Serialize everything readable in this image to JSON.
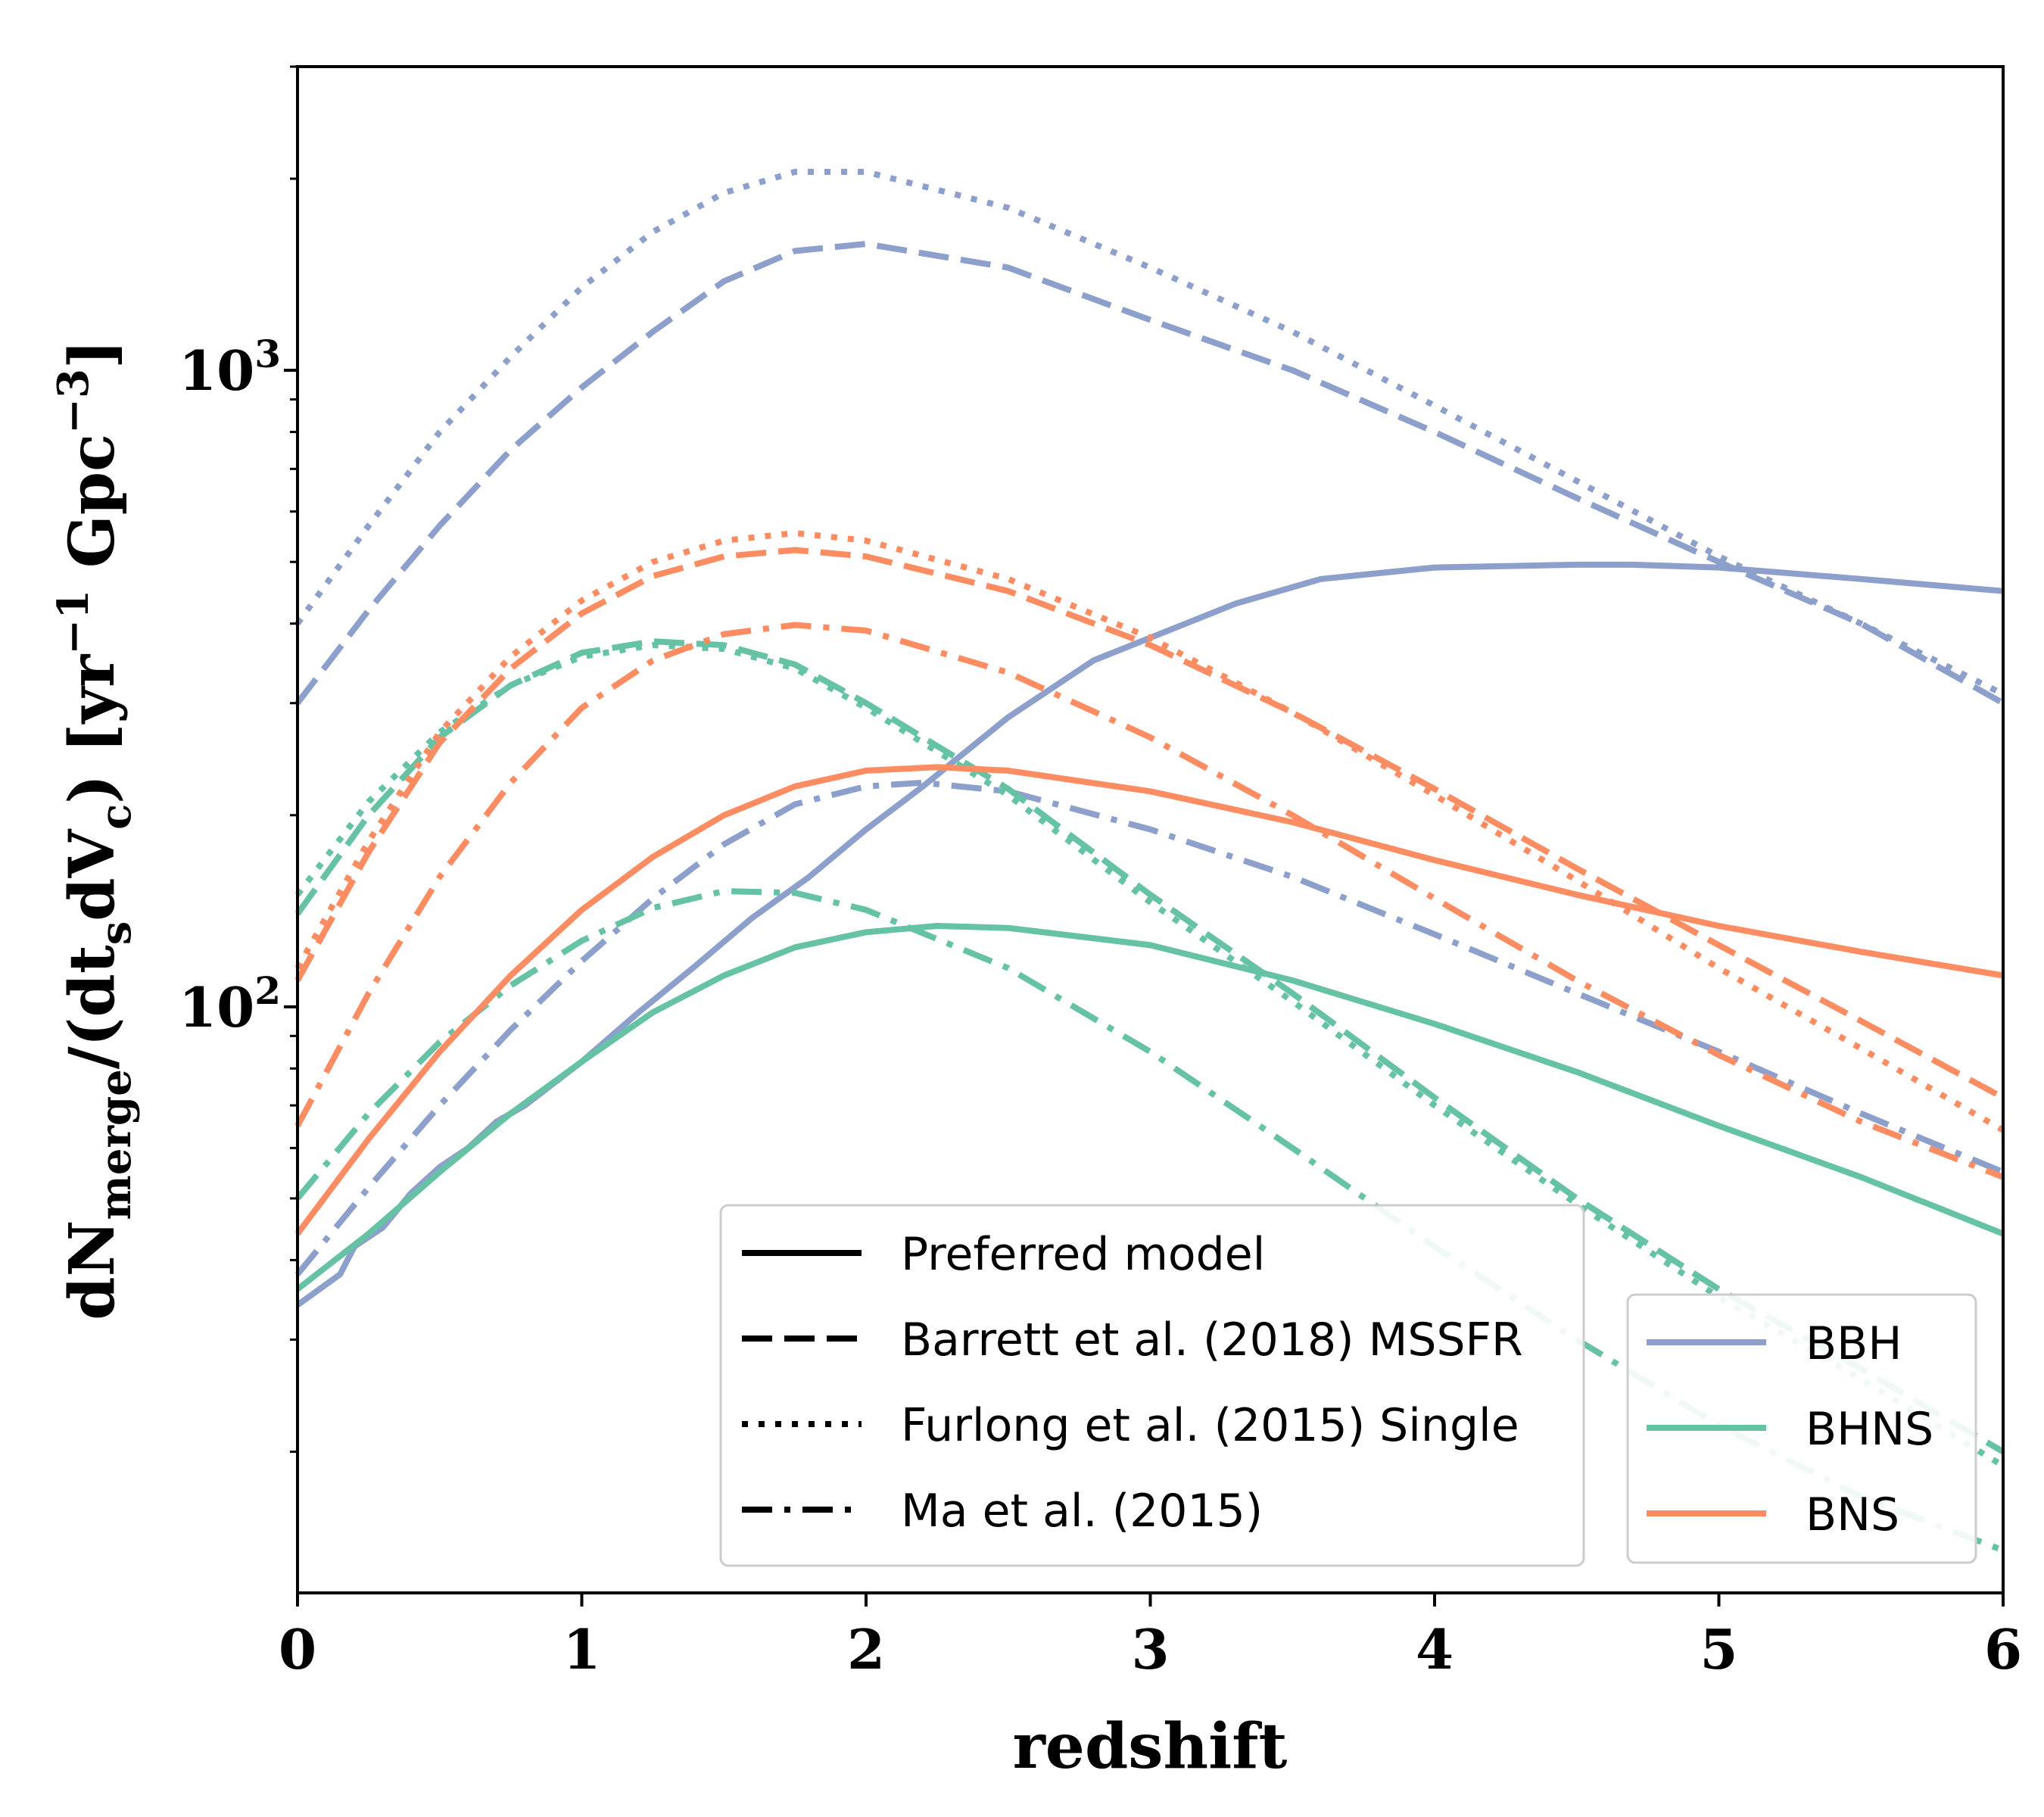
{
  "chart_data": {
    "type": "line",
    "xlabel": "redshift",
    "ylabel": "dN_merge/(dt_s dV_c) [yr^-1 Gpc^-3]",
    "xlim": [
      0,
      6
    ],
    "ylim": [
      12,
      3000
    ],
    "yscale": "log",
    "xticks": [
      "0",
      "1",
      "2",
      "3",
      "4",
      "5",
      "6"
    ],
    "yticks": [
      {
        "value": 100,
        "label": "10",
        "exp": "2"
      },
      {
        "value": 1000,
        "label": "10",
        "exp": "3"
      }
    ],
    "grid": false,
    "colors": {
      "BBH": "#8da0cb",
      "BHNS": "#66c2a5",
      "BNS": "#fc8d62"
    },
    "linestyle_legend": [
      {
        "name": "Preferred model",
        "style": "solid"
      },
      {
        "name": "Barrett et al. (2018) MSSFR",
        "style": "dashed"
      },
      {
        "name": "Furlong et al. (2015) Single",
        "style": "dotted"
      },
      {
        "name": "Ma et al. (2015)",
        "style": "dashdot"
      }
    ],
    "color_legend": [
      {
        "name": "BBH",
        "color": "#8da0cb"
      },
      {
        "name": "BHNS",
        "color": "#66c2a5"
      },
      {
        "name": "BNS",
        "color": "#fc8d62"
      }
    ],
    "series": [
      {
        "type": "BBH",
        "style": "solid",
        "x": [
          0,
          0.15,
          0.2,
          0.3,
          0.4,
          0.5,
          0.6,
          0.7,
          0.8,
          1.0,
          1.2,
          1.4,
          1.6,
          1.8,
          2.0,
          2.2,
          2.5,
          2.8,
          3.0,
          3.3,
          3.6,
          4.0,
          4.5,
          4.7,
          5.0,
          5.5,
          6.0
        ],
        "y": [
          34,
          38,
          42,
          45,
          51,
          56,
          60,
          66,
          70,
          82,
          98,
          116,
          138,
          160,
          190,
          222,
          285,
          350,
          380,
          430,
          470,
          490,
          495,
          495,
          490,
          470,
          450
        ]
      },
      {
        "type": "BBH",
        "style": "dashed",
        "x": [
          0,
          0.25,
          0.5,
          0.75,
          1.0,
          1.25,
          1.5,
          1.75,
          2.0,
          2.5,
          3.0,
          3.5,
          4.0,
          4.5,
          5.0,
          5.5,
          6.0
        ],
        "y": [
          300,
          420,
          570,
          750,
          940,
          1150,
          1380,
          1540,
          1580,
          1450,
          1200,
          1000,
          800,
          630,
          500,
          400,
          300
        ]
      },
      {
        "type": "BBH",
        "style": "dotted",
        "x": [
          0,
          0.25,
          0.5,
          0.75,
          1.0,
          1.25,
          1.5,
          1.75,
          2.0,
          2.5,
          3.0,
          3.5,
          4.0,
          4.5,
          5.0,
          5.5,
          6.0
        ],
        "y": [
          400,
          570,
          800,
          1050,
          1350,
          1650,
          1900,
          2050,
          2050,
          1800,
          1450,
          1150,
          880,
          670,
          510,
          400,
          310
        ]
      },
      {
        "type": "BBH",
        "style": "dashdot",
        "x": [
          0,
          0.25,
          0.5,
          0.75,
          1.0,
          1.25,
          1.5,
          1.75,
          2.0,
          2.2,
          2.5,
          3.0,
          3.5,
          4.0,
          4.5,
          5.0,
          5.5,
          6.0
        ],
        "y": [
          38,
          52,
          70,
          92,
          118,
          148,
          180,
          208,
          222,
          225,
          218,
          190,
          160,
          130,
          105,
          85,
          68,
          55
        ]
      },
      {
        "type": "BHNS",
        "style": "solid",
        "x": [
          0,
          0.25,
          0.5,
          0.75,
          1.0,
          1.25,
          1.5,
          1.75,
          2.0,
          2.25,
          2.5,
          3.0,
          3.5,
          4.0,
          4.5,
          5.0,
          5.5,
          6.0
        ],
        "y": [
          36,
          44,
          55,
          68,
          82,
          98,
          112,
          124,
          131,
          134,
          133,
          125,
          110,
          94,
          79,
          65,
          54,
          44
        ]
      },
      {
        "type": "BHNS",
        "style": "dashed",
        "x": [
          0,
          0.25,
          0.5,
          0.75,
          1.0,
          1.25,
          1.5,
          1.75,
          2.0,
          2.5,
          3.0,
          3.5,
          4.0,
          4.5,
          5.0,
          5.5,
          6.0
        ],
        "y": [
          140,
          200,
          265,
          320,
          360,
          375,
          370,
          345,
          300,
          220,
          150,
          105,
          72,
          50,
          36,
          27,
          20
        ]
      },
      {
        "type": "BHNS",
        "style": "dotted",
        "x": [
          0,
          0.25,
          0.5,
          0.75,
          1.0,
          1.25,
          1.5,
          1.75,
          2.0,
          2.5,
          3.0,
          3.5,
          4.0,
          4.5,
          5.0,
          5.5,
          6.0
        ],
        "y": [
          150,
          210,
          270,
          320,
          355,
          370,
          365,
          340,
          295,
          215,
          146,
          102,
          70,
          49,
          35,
          26,
          19
        ]
      },
      {
        "type": "BHNS",
        "style": "dashdot",
        "x": [
          0,
          0.25,
          0.5,
          0.75,
          1.0,
          1.25,
          1.5,
          1.75,
          2.0,
          2.5,
          3.0,
          3.5,
          4.0,
          4.5,
          5.0,
          5.5,
          6.0
        ],
        "y": [
          50,
          68,
          88,
          108,
          127,
          143,
          152,
          151,
          142,
          115,
          85,
          60,
          42,
          30,
          22,
          17,
          14
        ]
      },
      {
        "type": "BNS",
        "style": "solid",
        "x": [
          0,
          0.25,
          0.5,
          0.75,
          1.0,
          1.25,
          1.5,
          1.75,
          2.0,
          2.25,
          2.5,
          3.0,
          3.5,
          4.0,
          4.5,
          5.0,
          5.5,
          6.0
        ],
        "y": [
          44,
          62,
          85,
          112,
          142,
          172,
          200,
          222,
          235,
          238,
          235,
          218,
          195,
          170,
          150,
          134,
          122,
          112
        ]
      },
      {
        "type": "BNS",
        "style": "dashed",
        "x": [
          0,
          0.25,
          0.5,
          0.75,
          1.0,
          1.25,
          1.5,
          1.75,
          2.0,
          2.5,
          3.0,
          3.5,
          4.0,
          4.5,
          5.0,
          5.5,
          6.0
        ],
        "y": [
          110,
          175,
          260,
          340,
          415,
          475,
          510,
          522,
          510,
          450,
          370,
          290,
          220,
          165,
          125,
          95,
          72
        ]
      },
      {
        "type": "BNS",
        "style": "dotted",
        "x": [
          0,
          0.25,
          0.5,
          0.75,
          1.0,
          1.25,
          1.5,
          1.75,
          2.0,
          2.5,
          3.0,
          3.5,
          4.0,
          4.5,
          5.0,
          5.5,
          6.0
        ],
        "y": [
          115,
          182,
          270,
          355,
          435,
          500,
          540,
          555,
          540,
          470,
          380,
          290,
          215,
          158,
          115,
          86,
          64
        ]
      },
      {
        "type": "BNS",
        "style": "dashdot",
        "x": [
          0,
          0.25,
          0.5,
          0.75,
          1.0,
          1.25,
          1.5,
          1.75,
          2.0,
          2.5,
          3.0,
          3.5,
          4.0,
          4.5,
          5.0,
          5.5,
          6.0
        ],
        "y": [
          65,
          105,
          160,
          225,
          295,
          350,
          385,
          398,
          390,
          335,
          265,
          200,
          148,
          110,
          84,
          66,
          54
        ]
      }
    ]
  }
}
